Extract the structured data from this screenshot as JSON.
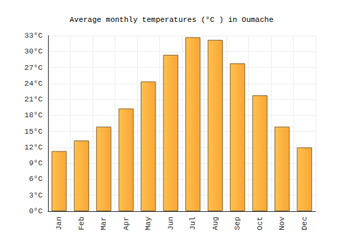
{
  "chart_data": {
    "type": "bar",
    "title": "Average monthly temperatures (°C ) in Oumache",
    "categories": [
      "Jan",
      "Feb",
      "Mar",
      "Apr",
      "May",
      "Jun",
      "Jul",
      "Aug",
      "Sep",
      "Oct",
      "Nov",
      "Dec"
    ],
    "values": [
      11.3,
      13.3,
      15.9,
      19.3,
      24.4,
      29.4,
      32.7,
      32.2,
      27.8,
      21.8,
      15.9,
      12.0
    ],
    "color": "#f9a635",
    "ylim": [
      0,
      33
    ],
    "yticks": [
      {
        "value": 0,
        "label": "0°C"
      },
      {
        "value": 3,
        "label": "3°C"
      },
      {
        "value": 6,
        "label": "6°C"
      },
      {
        "value": 9,
        "label": "9°C"
      },
      {
        "value": 12,
        "label": "12°C"
      },
      {
        "value": 15,
        "label": "15°C"
      },
      {
        "value": 18,
        "label": "18°C"
      },
      {
        "value": 21,
        "label": "21°C"
      },
      {
        "value": 24,
        "label": "24°C"
      },
      {
        "value": 27,
        "label": "27°C"
      },
      {
        "value": 30,
        "label": "30°C"
      },
      {
        "value": 33,
        "label": "33°C"
      }
    ],
    "grid": true
  }
}
